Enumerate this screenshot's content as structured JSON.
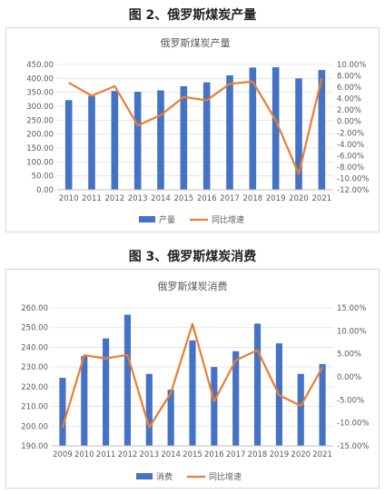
{
  "figures": [
    {
      "caption": "图 2、俄罗斯煤炭产量"
    },
    {
      "caption": "图 3、俄罗斯煤炭消费"
    }
  ],
  "colors": {
    "bar": "#4472C4",
    "line": "#ED7D31"
  },
  "chart_data": [
    {
      "type": "bar",
      "title": "俄罗斯煤炭产量",
      "categories": [
        "2010",
        "2011",
        "2012",
        "2013",
        "2014",
        "2015",
        "2016",
        "2017",
        "2018",
        "2019",
        "2020",
        "2021"
      ],
      "series": [
        {
          "name": "产量",
          "type": "bar",
          "axis": "left",
          "values": [
            322,
            337,
            355,
            352,
            357,
            372,
            386,
            411,
            439,
            440,
            400,
            430
          ]
        },
        {
          "name": "同比增速",
          "type": "line",
          "axis": "right",
          "values": [
            6.8,
            4.5,
            6.2,
            -0.7,
            1.1,
            4.3,
            3.7,
            6.6,
            7.0,
            0.2,
            -9.2,
            7.6
          ]
        }
      ],
      "ylim": [
        0,
        450
      ],
      "yticks": [
        "450.00",
        "400.00",
        "350.00",
        "300.00",
        "250.00",
        "200.00",
        "150.00",
        "100.00",
        "50.00",
        "0.00"
      ],
      "y2lim": [
        -12,
        10
      ],
      "y2ticks": [
        "10.00%",
        "8.00%",
        "6.00%",
        "4.00%",
        "2.00%",
        "0.00%",
        "-2.00%",
        "-4.00%",
        "-6.00%",
        "-8.00%",
        "-10.00%",
        "-12.00%"
      ],
      "legend": "bottom",
      "grid": true
    },
    {
      "type": "bar",
      "title": "俄罗斯煤炭消费",
      "categories": [
        "2009",
        "2010",
        "2011",
        "2012",
        "2013",
        "2014",
        "2015",
        "2016",
        "2017",
        "2018",
        "2019",
        "2020",
        "2021"
      ],
      "series": [
        {
          "name": "消费",
          "type": "bar",
          "axis": "left",
          "values": [
            224.5,
            235.5,
            244.5,
            256.5,
            226.5,
            218.5,
            243.5,
            230,
            238,
            252,
            242,
            226.5,
            231.5
          ]
        },
        {
          "name": "同比增速",
          "type": "line",
          "axis": "right",
          "values": [
            -11,
            4.7,
            4,
            4.8,
            -11,
            -3.5,
            11.5,
            -5.3,
            3.6,
            5.8,
            -4,
            -6.3,
            2.1
          ]
        }
      ],
      "ylim": [
        190,
        260
      ],
      "yticks": [
        "260.00",
        "250.00",
        "240.00",
        "230.00",
        "220.00",
        "210.00",
        "200.00",
        "190.00"
      ],
      "y2lim": [
        -15,
        15
      ],
      "y2ticks": [
        "15.00%",
        "10.00%",
        "5.00%",
        "0.00%",
        "-5.00%",
        "-10.00%",
        "-15.00%"
      ],
      "legend": "bottom",
      "grid": true
    }
  ]
}
